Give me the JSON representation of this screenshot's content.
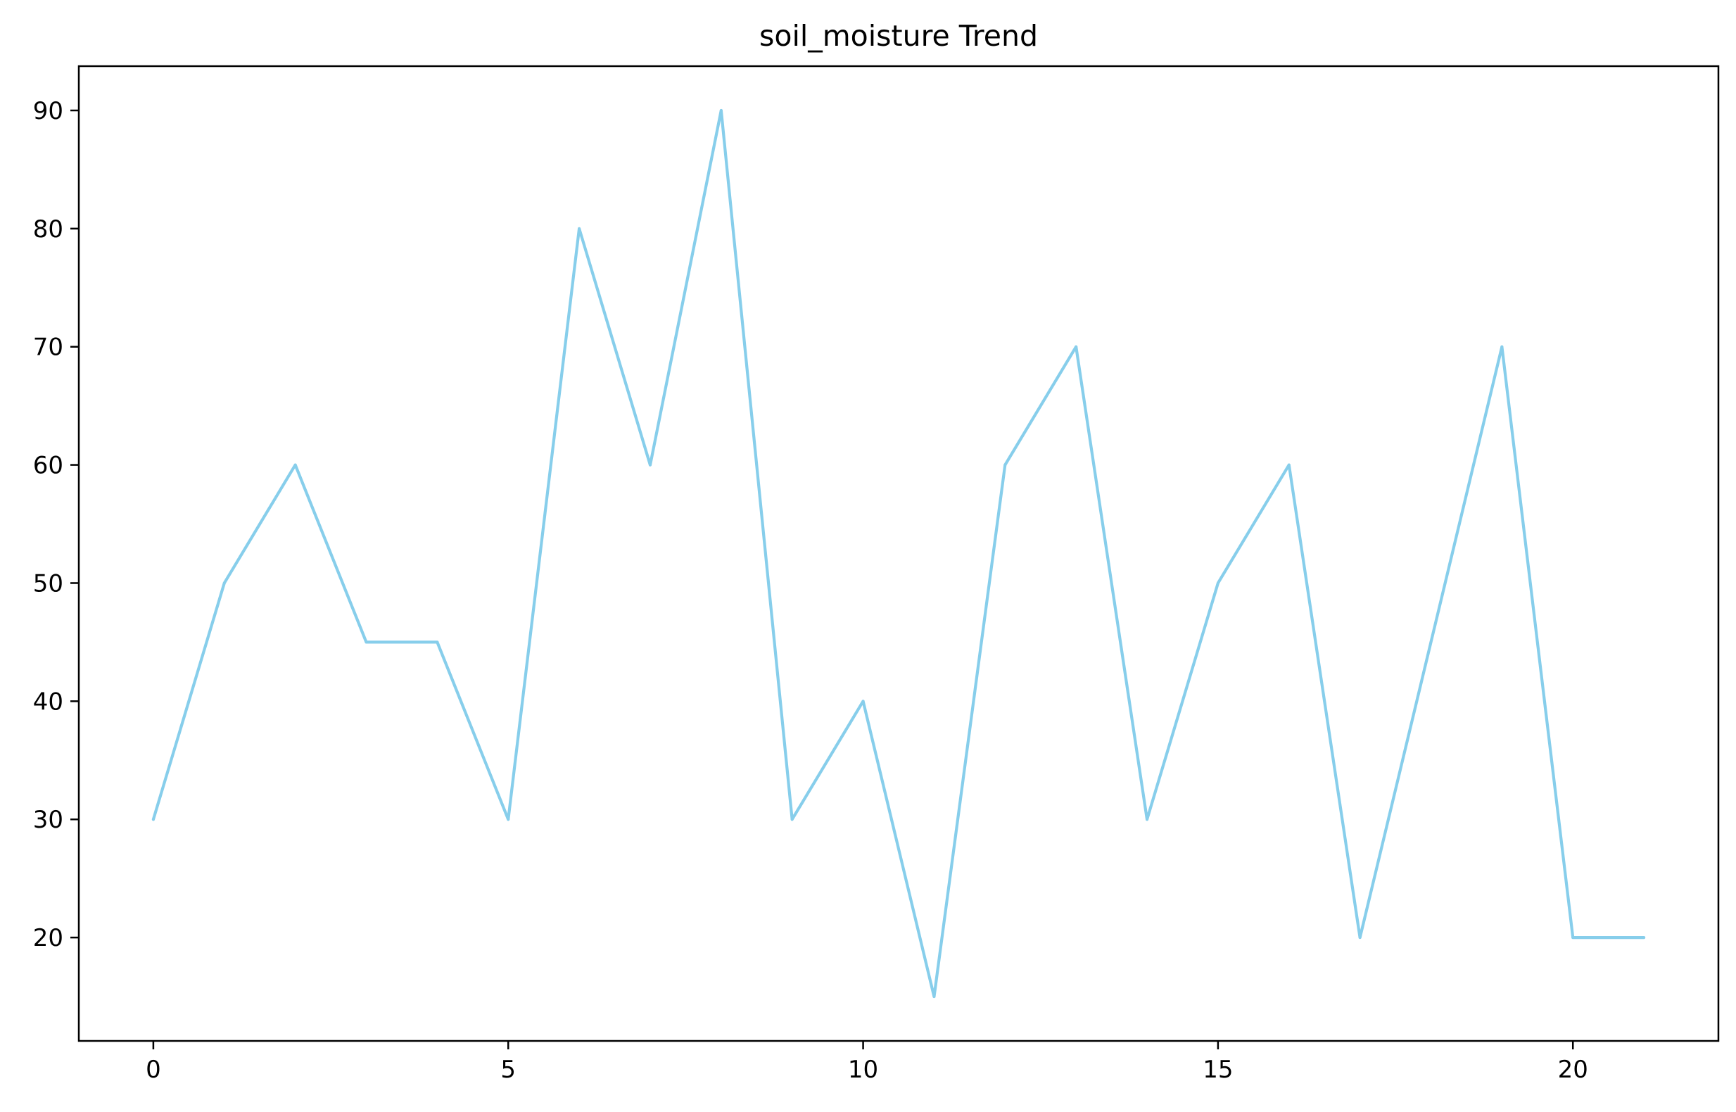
{
  "chart_data": {
    "type": "line",
    "title": "soil_moisture Trend",
    "xlabel": "",
    "ylabel": "",
    "x": [
      0,
      1,
      2,
      3,
      4,
      5,
      6,
      7,
      8,
      9,
      10,
      11,
      12,
      13,
      14,
      15,
      16,
      17,
      18,
      19,
      20,
      21
    ],
    "series": [
      {
        "values": [
          30,
          50,
          60,
          45,
          45,
          30,
          80,
          60,
          90,
          30,
          40,
          15,
          60,
          70,
          30,
          50,
          60,
          20,
          45,
          70,
          20,
          20
        ],
        "color": "#87ceeb"
      }
    ],
    "xlim": [
      -1.05,
      22.05
    ],
    "ylim": [
      11.25,
      93.75
    ],
    "xticks": [
      0,
      5,
      10,
      15,
      20
    ],
    "yticks": [
      20,
      30,
      40,
      50,
      60,
      70,
      80,
      90
    ],
    "grid": false,
    "legend": "none"
  }
}
